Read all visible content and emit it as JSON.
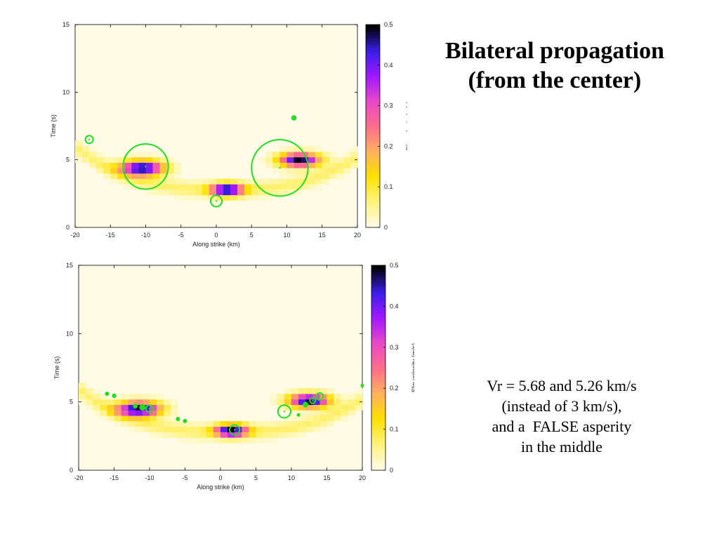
{
  "slide": {
    "title_line1": "Bilateral propagation",
    "title_line2": "(from the center)",
    "caption_line1": "Vr = 5.68 and 5.26 km/s",
    "caption_line2": "(instead of 3 km/s),",
    "caption_line3": "and a  FALSE asperity",
    "caption_line4": "in the middle"
  },
  "colors": {
    "circle": "#22dd22",
    "colormap": [
      "#fffbe6",
      "#fff27a",
      "#ffe000",
      "#ffb060",
      "#ff6c8c",
      "#e848c8",
      "#a018ff",
      "#3a1ee8",
      "#000000"
    ]
  },
  "chart_data": [
    {
      "type": "heatmap",
      "xlabel": "Along strike (km)",
      "ylabel": "Time (s)",
      "colorbar_label": "Slip velocity (m/s)",
      "xlim": [
        -20,
        20
      ],
      "ylim": [
        0,
        15
      ],
      "clim": [
        0,
        0.5
      ],
      "xticks": [
        "-20",
        "-15",
        "-10",
        "-5",
        "0",
        "5",
        "10",
        "15",
        "20"
      ],
      "yticks": [
        "0",
        "5",
        "10",
        "15"
      ],
      "cticks": [
        "0",
        "0.1",
        "0.2",
        "0.3",
        "0.4",
        "0.5"
      ],
      "slip_peaks": [
        {
          "x": -10.5,
          "t": 4.4,
          "peak": 0.5,
          "sx": 3.0,
          "st": 0.55
        },
        {
          "x": 1.5,
          "t": 2.8,
          "peak": 0.5,
          "sx": 2.2,
          "st": 0.45
        },
        {
          "x": 11.8,
          "t": 5.0,
          "peak": 0.5,
          "sx": 2.8,
          "st": 0.5
        }
      ],
      "circles": [
        {
          "x": -10,
          "t": 4.5,
          "r": 3.2
        },
        {
          "x": 9,
          "t": 4.4,
          "r": 4.0
        },
        {
          "x": -18,
          "t": 6.5,
          "r": 0.55
        },
        {
          "x": 0,
          "t": 1.95,
          "r": 0.8
        },
        {
          "x": 11,
          "t": 8.1,
          "r": 0.28
        }
      ]
    },
    {
      "type": "heatmap",
      "xlabel": "Along strike (km)",
      "ylabel": "Time (s)",
      "colorbar_label": "Slip velocity (m/s)",
      "xlim": [
        -20,
        20
      ],
      "ylim": [
        0,
        15
      ],
      "clim": [
        0,
        0.5
      ],
      "xticks": [
        "-20",
        "-15",
        "-10",
        "-5",
        "0",
        "5",
        "10",
        "15",
        "20"
      ],
      "yticks": [
        "0",
        "5",
        "10",
        "15"
      ],
      "cticks": [
        "0",
        "0.1",
        "0.2",
        "0.3",
        "0.4",
        "0.5"
      ],
      "slip_peaks": [
        {
          "x": -11.5,
          "t": 4.5,
          "peak": 0.5,
          "sx": 3.0,
          "st": 0.55
        },
        {
          "x": 1.5,
          "t": 2.9,
          "peak": 0.5,
          "sx": 2.2,
          "st": 0.45
        },
        {
          "x": 12.5,
          "t": 5.1,
          "peak": 0.5,
          "sx": 2.8,
          "st": 0.5
        }
      ],
      "circles": [
        {
          "x": -10,
          "t": 4.5,
          "r": 0.5
        },
        {
          "x": -11,
          "t": 4.6,
          "r": 0.35
        },
        {
          "x": 2,
          "t": 2.95,
          "r": 0.7
        },
        {
          "x": 9,
          "t": 4.3,
          "r": 0.9
        },
        {
          "x": 13,
          "t": 5.1,
          "r": 0.4
        },
        {
          "x": 14,
          "t": 5.4,
          "r": 0.5
        },
        {
          "x": 12,
          "t": 4.8,
          "r": 0.3
        },
        {
          "x": -16,
          "t": 5.6,
          "r": 0.2
        },
        {
          "x": -15,
          "t": 5.45,
          "r": 0.22
        },
        {
          "x": -12,
          "t": 4.7,
          "r": 0.25
        },
        {
          "x": -6,
          "t": 3.75,
          "r": 0.2
        },
        {
          "x": -5,
          "t": 3.6,
          "r": 0.2
        },
        {
          "x": 11,
          "t": 4.05,
          "r": 0.15
        },
        {
          "x": 20,
          "t": 6.2,
          "r": 0.15
        }
      ]
    }
  ]
}
